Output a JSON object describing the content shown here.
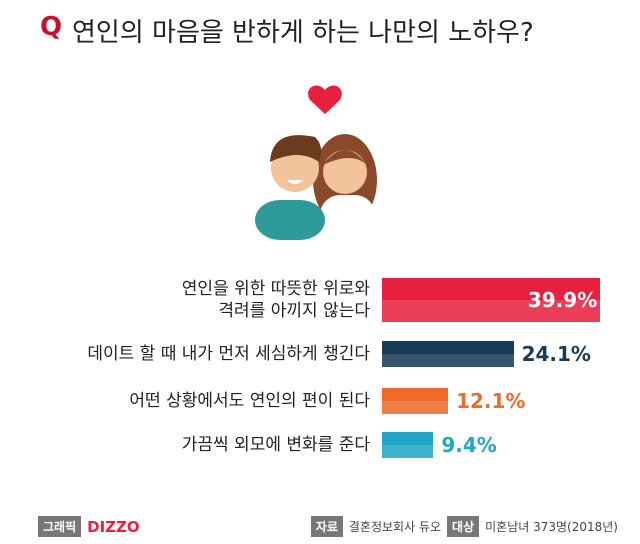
{
  "chart_data": {
    "type": "bar",
    "orientation": "horizontal",
    "title_prefix": "Q",
    "title": "연인의 마음을 반하게 하는 나만의 노하우?",
    "categories": [
      "연인을 위한 따뜻한 위로와\n격려를 아끼지 않는다",
      "데이트 할 때 내가 먼저 세심하게 챙긴다",
      "어떤 상황에서도 연인의 편이 된다",
      "가끔씩 외모에 변화를 준다"
    ],
    "values": [
      39.9,
      24.1,
      12.1,
      9.4
    ],
    "value_labels": [
      "39.9%",
      "24.1%",
      "12.1%",
      "9.4%"
    ],
    "colors": [
      "#e8203f",
      "#173a55",
      "#f06a2b",
      "#21a6c6"
    ],
    "footer": {
      "graphic_tag": "그래픽",
      "graphic_by": "DIZZO",
      "source_tag": "자료",
      "source": "결혼정보회사 듀오",
      "target_tag": "대상",
      "target": "미혼남녀 373명(2018년)"
    }
  }
}
